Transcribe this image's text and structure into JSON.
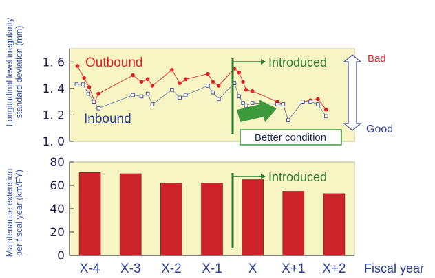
{
  "colors": {
    "panel_bg": "#f6f5c3",
    "outbound": "#e0202a",
    "inbound": "#6e7fb8",
    "bar": "#cc2229",
    "marker_line": "#2e7d32",
    "arrow_fill": "#3c9a3c",
    "text_blue": "#2b3f9a",
    "text_red": "#e0202a",
    "text_green": "#2e7d32"
  },
  "chart_data": [
    {
      "type": "line",
      "ylabel": "Longitudinal level irregularity standard deviation (mm)",
      "ylim": [
        1.0,
        1.7
      ],
      "yticks": [
        "1. 0",
        "1. 2",
        "1. 4",
        "1. 6"
      ],
      "ytick_values": [
        1.0,
        1.2,
        1.4,
        1.6
      ],
      "x_range": [
        0,
        7
      ],
      "series": [
        {
          "name": "Outbound",
          "x": [
            0.08,
            0.25,
            0.38,
            0.52,
            0.62,
            1.5,
            1.72,
            1.88,
            2.0,
            2.5,
            2.7,
            2.85,
            3.42,
            3.55,
            3.7,
            4.1,
            4.22,
            4.32,
            4.4,
            4.56,
            5.2,
            5.35,
            5.48,
            5.85,
            6.05,
            6.24,
            6.45
          ],
          "y": [
            1.57,
            1.48,
            1.41,
            1.3,
            1.36,
            1.5,
            1.45,
            1.47,
            1.42,
            1.54,
            1.44,
            1.47,
            1.51,
            1.45,
            1.42,
            1.55,
            1.52,
            1.45,
            1.39,
            1.38,
            1.3,
            1.28,
            1.16,
            1.3,
            1.31,
            1.32,
            1.24
          ]
        },
        {
          "name": "Inbound",
          "x": [
            0.06,
            0.22,
            0.36,
            0.5,
            0.62,
            1.5,
            1.72,
            1.88,
            2.0,
            2.5,
            2.7,
            2.85,
            3.42,
            3.55,
            3.7,
            4.1,
            4.22,
            4.32,
            4.4,
            4.56,
            5.2,
            5.35,
            5.48,
            5.85,
            6.05,
            6.24,
            6.45
          ],
          "y": [
            1.43,
            1.43,
            1.36,
            1.3,
            1.25,
            1.35,
            1.34,
            1.36,
            1.28,
            1.39,
            1.33,
            1.35,
            1.42,
            1.37,
            1.32,
            1.44,
            1.34,
            1.29,
            1.27,
            1.29,
            1.28,
            1.28,
            1.16,
            1.3,
            1.3,
            1.28,
            1.19
          ]
        }
      ],
      "introduced_x": 3.83,
      "annotations": {
        "outbound_label": "Outbound",
        "inbound_label": "Inbound",
        "introduced": "Introduced",
        "bad": "Bad",
        "good": "Good",
        "better": "Better condition"
      }
    },
    {
      "type": "bar",
      "categories": [
        "X-4",
        "X-3",
        "X-2",
        "X-1",
        "X",
        "X+1",
        "X+2"
      ],
      "values": [
        71,
        70,
        62,
        62,
        65,
        55,
        53
      ],
      "ylim": [
        0,
        80
      ],
      "yticks": [
        "0",
        "20",
        "40",
        "60",
        "80"
      ],
      "ytick_values": [
        0,
        20,
        40,
        60,
        80
      ],
      "ylabel": "Maintenance extension per fiscal year (km/FY)",
      "xlabel": "Fiscal year",
      "introduced_x": 3.83,
      "annotations": {
        "introduced": "Introduced"
      }
    }
  ]
}
